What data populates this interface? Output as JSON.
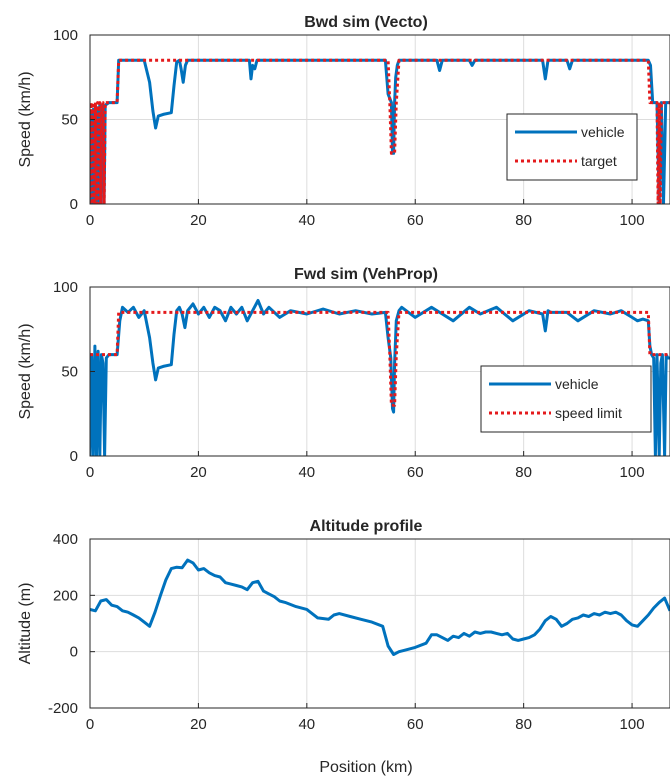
{
  "chart_data": [
    {
      "type": "line",
      "title": "Bwd sim (Vecto)",
      "xlabel": "",
      "ylabel": "Speed (km/h)",
      "xlim": [
        0,
        107
      ],
      "ylim": [
        0,
        100
      ],
      "xticks": [
        0,
        20,
        40,
        60,
        80,
        100
      ],
      "yticks": [
        0,
        50,
        100
      ],
      "grid": true,
      "legend": "lower-right",
      "series": [
        {
          "name": "vehicle",
          "color": "#0072bd",
          "style": "solid",
          "x": [
            0,
            0.2,
            0.4,
            0.6,
            0.8,
            1.0,
            1.2,
            1.4,
            1.6,
            1.8,
            2.0,
            2.2,
            2.4,
            2.6,
            2.8,
            3.0,
            3.5,
            5.0,
            5.3,
            10.0,
            11.0,
            11.6,
            12.1,
            12.6,
            13.5,
            15.0,
            15.5,
            16.0,
            16.5,
            16.8,
            17.2,
            17.6,
            18.0,
            18.5,
            19.0,
            29.4,
            29.7,
            30.0,
            30.4,
            30.8,
            31.0,
            54.5,
            55.0,
            55.6,
            55.8,
            56.0,
            56.2,
            56.4,
            56.7,
            57.0,
            57.3,
            57.6,
            64.0,
            64.5,
            65.0,
            65.5,
            66.0,
            70.0,
            70.5,
            71.0,
            71.5,
            75.0,
            83.5,
            84.0,
            84.5,
            85.0,
            88.0,
            88.5,
            89.0,
            103.0,
            103.4,
            103.8,
            104.2,
            104.6,
            105.0,
            105.4,
            105.8,
            106.2,
            106.6,
            107.0
          ],
          "y": [
            0,
            55,
            0,
            56,
            0,
            58,
            0,
            57,
            0,
            59,
            0,
            58,
            59,
            0,
            58,
            59,
            60,
            60,
            85,
            85,
            72,
            55,
            45,
            52,
            53,
            54,
            70,
            84,
            85,
            80,
            72,
            82,
            85,
            85,
            85,
            85,
            74,
            82,
            80,
            85,
            85,
            85,
            65,
            60,
            30,
            30,
            60,
            75,
            82,
            85,
            85,
            85,
            85,
            79,
            85,
            85,
            85,
            85,
            82,
            85,
            85,
            85,
            85,
            74,
            85,
            85,
            85,
            80,
            85,
            85,
            82,
            60,
            60,
            60,
            0,
            60,
            0,
            60,
            60,
            60
          ]
        },
        {
          "name": "target",
          "color": "#e41a1c",
          "style": "dotted",
          "x": [
            0,
            0.2,
            0.4,
            0.6,
            0.8,
            1.0,
            1.2,
            1.4,
            1.6,
            1.8,
            2.0,
            2.2,
            2.4,
            2.6,
            2.8,
            3.0,
            5.0,
            5.3,
            55.0,
            55.3,
            55.6,
            56.2,
            56.5,
            57.0,
            103.0,
            103.3,
            104.6,
            104.8,
            105.0,
            105.2,
            105.4,
            107.0
          ],
          "y": [
            0,
            60,
            0,
            60,
            0,
            60,
            0,
            60,
            0,
            60,
            0,
            60,
            60,
            0,
            60,
            60,
            60,
            85,
            85,
            60,
            30,
            30,
            60,
            85,
            85,
            60,
            60,
            0,
            60,
            0,
            60,
            60
          ]
        }
      ]
    },
    {
      "type": "line",
      "title": "Fwd sim (VehProp)",
      "xlabel": "",
      "ylabel": "Speed (km/h)",
      "xlim": [
        0,
        107
      ],
      "ylim": [
        0,
        100
      ],
      "xticks": [
        0,
        20,
        40,
        60,
        80,
        100
      ],
      "yticks": [
        0,
        50,
        100
      ],
      "grid": true,
      "legend": "lower-right",
      "series": [
        {
          "name": "vehicle",
          "color": "#0072bd",
          "style": "solid",
          "x": [
            0,
            0.3,
            0.6,
            0.9,
            1.2,
            1.5,
            1.8,
            2.1,
            2.4,
            2.7,
            3.0,
            3.5,
            5.0,
            5.5,
            6.0,
            7.0,
            8.0,
            9.0,
            10.0,
            11.0,
            11.6,
            12.1,
            12.6,
            13.5,
            15.0,
            15.5,
            16.0,
            16.5,
            17.0,
            17.5,
            18.0,
            19.0,
            20.0,
            21.0,
            22.0,
            23.0,
            24.0,
            25.0,
            26.0,
            27.0,
            28.0,
            29.0,
            30.0,
            31.0,
            32.0,
            33.0,
            35.0,
            37.0,
            40.0,
            43.0,
            46.0,
            49.0,
            52.0,
            54.5,
            55.0,
            55.5,
            55.8,
            56.0,
            56.2,
            56.5,
            57.0,
            57.5,
            60.0,
            63.0,
            65.0,
            67.0,
            70.0,
            72.0,
            75.0,
            78.0,
            81.0,
            83.5,
            84.0,
            84.5,
            85.0,
            88.0,
            90.0,
            93.0,
            96.0,
            98.0,
            100.0,
            101.0,
            102.0,
            103.0,
            103.3,
            103.6,
            104.0,
            104.3,
            104.6,
            105.0,
            105.3,
            105.6,
            106.0,
            106.3,
            106.6,
            107.0
          ],
          "y": [
            0,
            60,
            0,
            65,
            0,
            62,
            0,
            60,
            55,
            0,
            58,
            60,
            60,
            80,
            88,
            85,
            88,
            82,
            86,
            70,
            55,
            45,
            52,
            53,
            54,
            72,
            86,
            88,
            84,
            76,
            86,
            90,
            84,
            88,
            82,
            88,
            86,
            80,
            88,
            84,
            88,
            80,
            86,
            92,
            84,
            88,
            82,
            86,
            84,
            87,
            84,
            86,
            84,
            85,
            70,
            58,
            28,
            26,
            55,
            80,
            86,
            88,
            82,
            88,
            84,
            80,
            88,
            84,
            88,
            80,
            86,
            84,
            74,
            86,
            85,
            85,
            80,
            86,
            84,
            86,
            82,
            80,
            81,
            80,
            65,
            60,
            58,
            0,
            60,
            0,
            55,
            60,
            0,
            60,
            58,
            58
          ]
        },
        {
          "name": "speed limit",
          "color": "#e41a1c",
          "style": "dotted",
          "x": [
            0,
            3.0,
            5.0,
            5.3,
            55.0,
            55.3,
            55.6,
            56.2,
            56.5,
            57.0,
            103.0,
            103.3,
            107.0
          ],
          "y": [
            60,
            60,
            60,
            85,
            85,
            60,
            30,
            30,
            60,
            85,
            85,
            60,
            60
          ]
        }
      ]
    },
    {
      "type": "line",
      "title": "Altitude profile",
      "xlabel": "Position (km)",
      "ylabel": "Altitude (m)",
      "xlim": [
        0,
        107
      ],
      "ylim": [
        -200,
        400
      ],
      "xticks": [
        0,
        20,
        40,
        60,
        80,
        100
      ],
      "yticks": [
        -200,
        0,
        200,
        400
      ],
      "grid": true,
      "series": [
        {
          "color": "#0072bd",
          "style": "solid",
          "x": [
            0,
            1,
            2,
            3,
            4,
            5,
            6,
            7,
            8,
            9,
            10,
            11,
            12,
            13,
            14,
            15,
            16,
            17,
            18,
            19,
            20,
            21,
            22,
            23,
            24,
            25,
            26,
            27,
            28,
            29,
            30,
            31,
            32,
            33,
            34,
            35,
            36,
            38,
            40,
            42,
            44,
            45,
            46,
            48,
            50,
            52,
            54,
            55,
            56,
            57,
            58,
            60,
            62,
            63,
            64,
            65,
            66,
            67,
            68,
            69,
            70,
            71,
            72,
            73,
            74,
            75,
            76,
            77,
            78,
            79,
            80,
            81,
            82,
            83,
            84,
            85,
            86,
            87,
            88,
            89,
            90,
            91,
            92,
            93,
            94,
            95,
            96,
            97,
            98,
            99,
            100,
            101,
            102,
            103,
            104,
            105,
            106,
            107
          ],
          "y": [
            150,
            145,
            180,
            185,
            165,
            160,
            145,
            140,
            130,
            120,
            105,
            90,
            140,
            200,
            255,
            295,
            300,
            298,
            325,
            315,
            290,
            295,
            280,
            270,
            265,
            245,
            240,
            235,
            230,
            220,
            245,
            250,
            215,
            205,
            195,
            180,
            175,
            160,
            150,
            120,
            115,
            130,
            135,
            125,
            115,
            105,
            90,
            20,
            -10,
            0,
            5,
            15,
            30,
            60,
            60,
            50,
            40,
            55,
            50,
            65,
            55,
            70,
            65,
            70,
            70,
            65,
            60,
            65,
            45,
            40,
            45,
            50,
            60,
            80,
            110,
            125,
            115,
            90,
            100,
            115,
            120,
            130,
            125,
            135,
            130,
            140,
            135,
            140,
            130,
            110,
            95,
            90,
            110,
            130,
            155,
            175,
            190,
            145
          ]
        }
      ]
    }
  ],
  "legend": [
    {
      "labels": [
        "vehicle",
        "target"
      ]
    },
    {
      "labels": [
        "vehicle",
        "speed limit"
      ]
    }
  ]
}
